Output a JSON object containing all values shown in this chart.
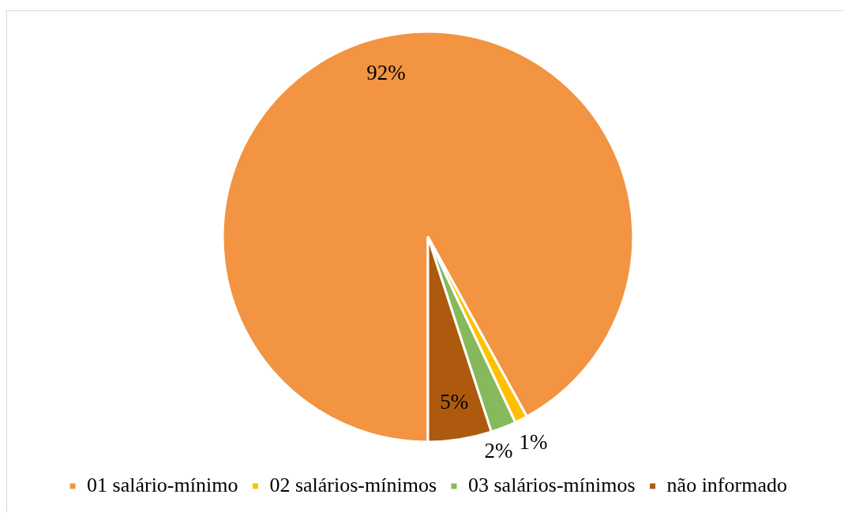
{
  "chart_data": {
    "type": "pie",
    "categories": [
      "01 salário-mínimo",
      "02 salários-mínimos",
      "03 salários-mínimos",
      "não informado"
    ],
    "values": [
      92,
      1,
      2,
      5
    ],
    "colors": [
      "#f29441",
      "#ffc000",
      "#86b95b",
      "#ae5a0e"
    ],
    "value_labels": [
      "92%",
      "1%",
      "2%",
      "5%"
    ],
    "legend": "bottom"
  }
}
